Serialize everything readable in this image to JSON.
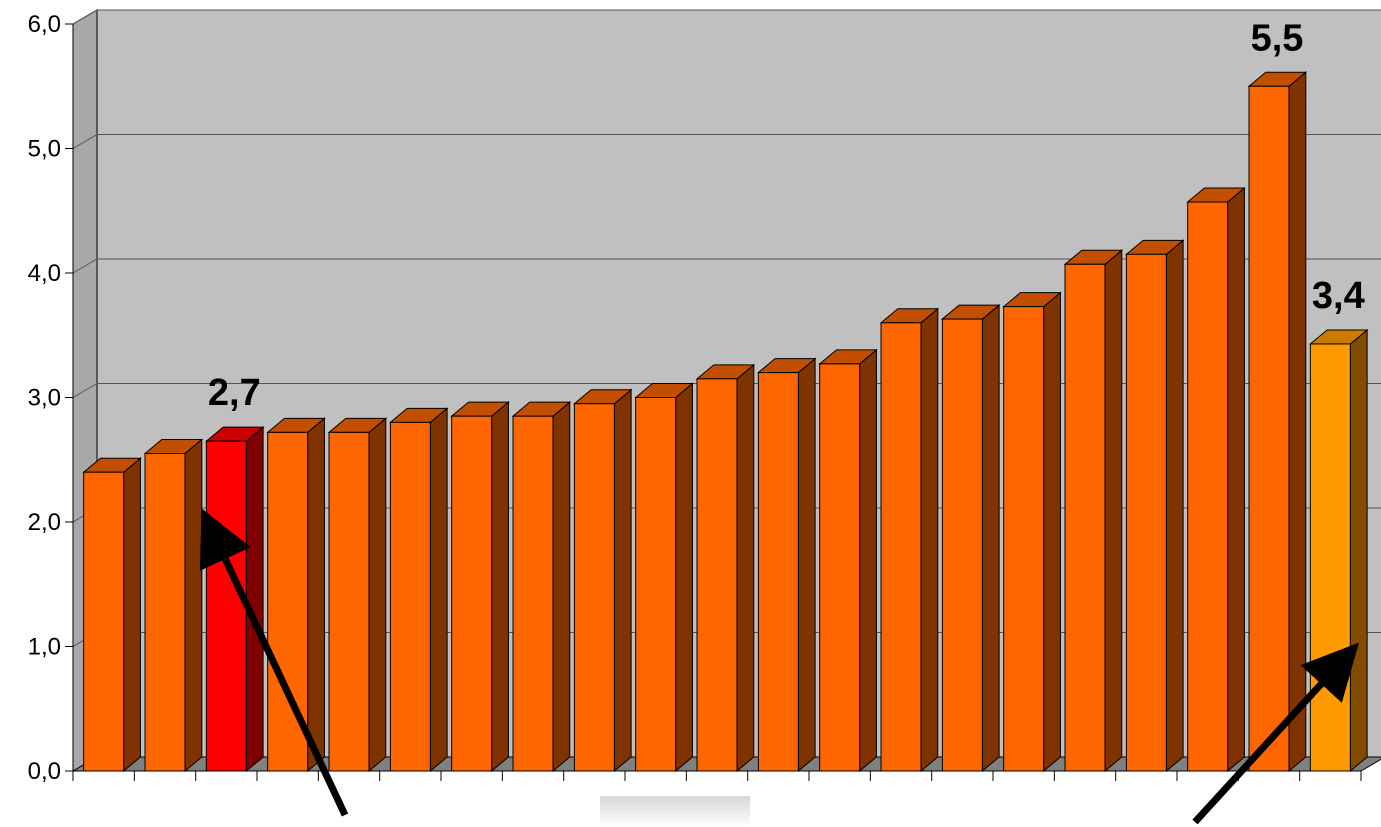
{
  "chart_data": {
    "type": "bar",
    "style": "3d-columns",
    "ylim": [
      0,
      6
    ],
    "yticks": [
      "0,0",
      "1,0",
      "2,0",
      "3,0",
      "4,0",
      "5,0",
      "6,0"
    ],
    "grid": true,
    "legend": "none",
    "values": [
      2.4,
      2.55,
      2.65,
      2.72,
      2.72,
      2.8,
      2.85,
      2.85,
      2.95,
      3.0,
      3.15,
      3.2,
      3.27,
      3.6,
      3.63,
      3.73,
      4.07,
      4.15,
      4.57,
      5.5,
      3.43
    ],
    "highlight": [
      {
        "index": 2,
        "label": "2,7",
        "color": "#ff0000"
      },
      {
        "index": 19,
        "label": "5,5"
      },
      {
        "index": 20,
        "label": "3,4",
        "color": "#ff9900"
      }
    ],
    "colors": {
      "bar_front": "#ff6600",
      "bar_side": "#7f3300",
      "bar_top": "#c24f00",
      "highlight_front": "#ff0000",
      "highlight_side": "#800000",
      "highlight_top": "#cc0000",
      "last_front": "#ff9900",
      "last_side": "#804d00",
      "last_top": "#cc7a00",
      "wall": "#c0c0c0",
      "floor": "#808080",
      "arrow": "#000000"
    },
    "annotations": [
      {
        "type": "arrow",
        "target_index": 2
      },
      {
        "type": "arrow",
        "target_index": 20
      }
    ]
  }
}
